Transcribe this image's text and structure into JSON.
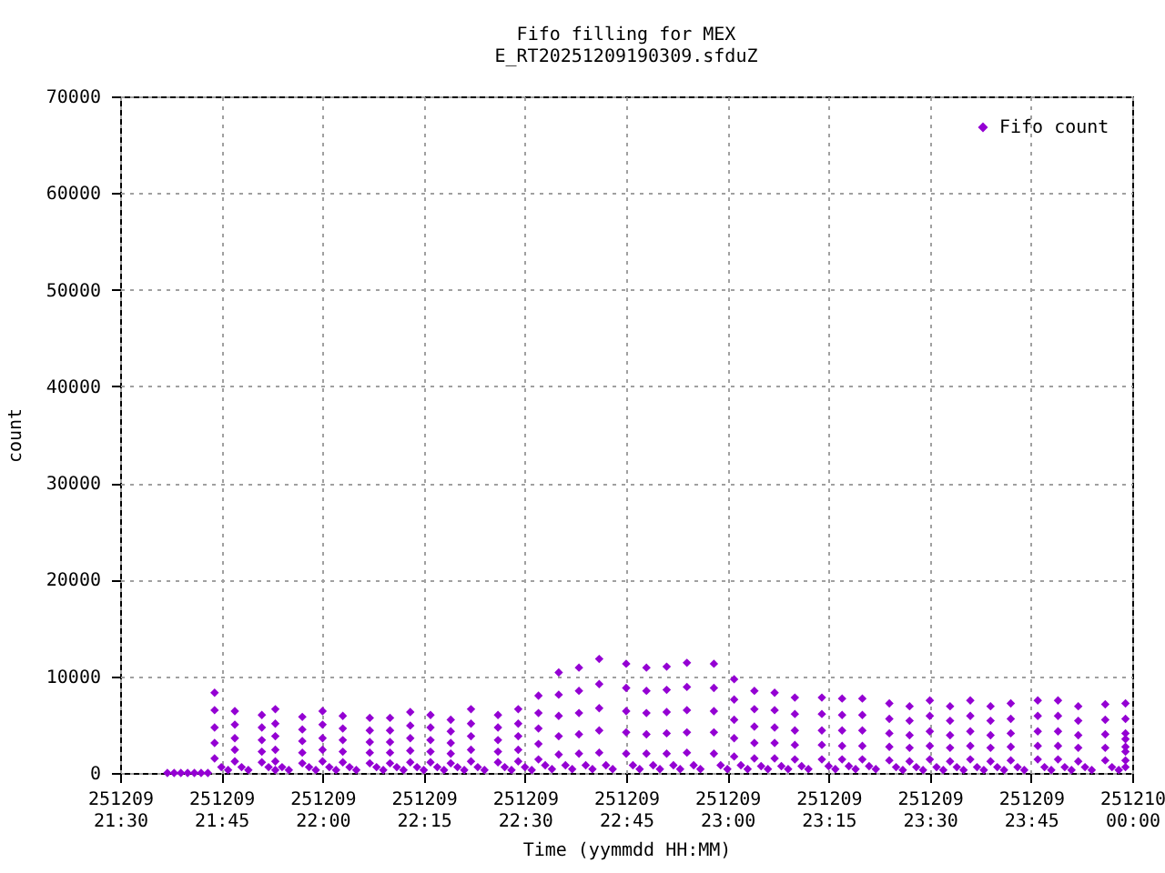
{
  "chart_data": {
    "type": "scatter",
    "title": "Fifo filling for MEX",
    "subtitle": "E_RT20251209190309.sfduZ",
    "xlabel": "Time (yymmdd HH:MM)",
    "ylabel": "count",
    "xlim": [
      "2025-12-09T21:30",
      "2025-12-10T00:00"
    ],
    "xticks": [
      {
        "value": "2025-12-09T21:30",
        "label": "251209\n21:30"
      },
      {
        "value": "2025-12-09T21:45",
        "label": "251209\n21:45"
      },
      {
        "value": "2025-12-09T22:00",
        "label": "251209\n22:00"
      },
      {
        "value": "2025-12-09T22:15",
        "label": "251209\n22:15"
      },
      {
        "value": "2025-12-09T22:30",
        "label": "251209\n22:30"
      },
      {
        "value": "2025-12-09T22:45",
        "label": "251209\n22:45"
      },
      {
        "value": "2025-12-09T23:00",
        "label": "251209\n23:00"
      },
      {
        "value": "2025-12-09T23:15",
        "label": "251209\n23:15"
      },
      {
        "value": "2025-12-09T23:30",
        "label": "251209\n23:30"
      },
      {
        "value": "2025-12-09T23:45",
        "label": "251209\n23:45"
      },
      {
        "value": "2025-12-10T00:00",
        "label": "251210\n00:00"
      }
    ],
    "ylim": [
      0,
      70000
    ],
    "yticks": [
      0,
      10000,
      20000,
      30000,
      40000,
      50000,
      60000,
      70000
    ],
    "grid": true,
    "legend": "top right",
    "marker": "diamond",
    "series": [
      {
        "name": "Fifo count",
        "color": "#9400d3",
        "x": [
          "2025-12-09T21:37",
          "2025-12-09T21:38",
          "2025-12-09T21:39",
          "2025-12-09T21:40",
          "2025-12-09T21:41",
          "2025-12-09T21:42",
          "2025-12-09T21:43",
          "2025-12-09T21:44",
          "2025-12-09T21:44",
          "2025-12-09T21:44",
          "2025-12-09T21:44",
          "2025-12-09T21:44",
          "2025-12-09T21:45",
          "2025-12-09T21:46",
          "2025-12-09T21:47",
          "2025-12-09T21:47",
          "2025-12-09T21:47",
          "2025-12-09T21:47",
          "2025-12-09T21:47",
          "2025-12-09T21:48",
          "2025-12-09T21:49",
          "2025-12-09T21:51",
          "2025-12-09T21:51",
          "2025-12-09T21:51",
          "2025-12-09T21:51",
          "2025-12-09T21:51",
          "2025-12-09T21:52",
          "2025-12-09T21:53",
          "2025-12-09T21:53",
          "2025-12-09T21:53",
          "2025-12-09T21:53",
          "2025-12-09T21:53",
          "2025-12-09T21:53",
          "2025-12-09T21:54",
          "2025-12-09T21:55",
          "2025-12-09T21:57",
          "2025-12-09T21:57",
          "2025-12-09T21:57",
          "2025-12-09T21:57",
          "2025-12-09T21:57",
          "2025-12-09T21:58",
          "2025-12-09T21:59",
          "2025-12-09T22:00",
          "2025-12-09T22:00",
          "2025-12-09T22:00",
          "2025-12-09T22:00",
          "2025-12-09T22:00",
          "2025-12-09T22:01",
          "2025-12-09T22:02",
          "2025-12-09T22:03",
          "2025-12-09T22:03",
          "2025-12-09T22:03",
          "2025-12-09T22:03",
          "2025-12-09T22:03",
          "2025-12-09T22:04",
          "2025-12-09T22:05",
          "2025-12-09T22:07",
          "2025-12-09T22:07",
          "2025-12-09T22:07",
          "2025-12-09T22:07",
          "2025-12-09T22:07",
          "2025-12-09T22:08",
          "2025-12-09T22:09",
          "2025-12-09T22:10",
          "2025-12-09T22:10",
          "2025-12-09T22:10",
          "2025-12-09T22:10",
          "2025-12-09T22:10",
          "2025-12-09T22:11",
          "2025-12-09T22:12",
          "2025-12-09T22:13",
          "2025-12-09T22:13",
          "2025-12-09T22:13",
          "2025-12-09T22:13",
          "2025-12-09T22:13",
          "2025-12-09T22:14",
          "2025-12-09T22:15",
          "2025-12-09T22:16",
          "2025-12-09T22:16",
          "2025-12-09T22:16",
          "2025-12-09T22:16",
          "2025-12-09T22:16",
          "2025-12-09T22:17",
          "2025-12-09T22:18",
          "2025-12-09T22:19",
          "2025-12-09T22:19",
          "2025-12-09T22:19",
          "2025-12-09T22:19",
          "2025-12-09T22:19",
          "2025-12-09T22:20",
          "2025-12-09T22:21",
          "2025-12-09T22:22",
          "2025-12-09T22:22",
          "2025-12-09T22:22",
          "2025-12-09T22:22",
          "2025-12-09T22:22",
          "2025-12-09T22:23",
          "2025-12-09T22:24",
          "2025-12-09T22:26",
          "2025-12-09T22:26",
          "2025-12-09T22:26",
          "2025-12-09T22:26",
          "2025-12-09T22:26",
          "2025-12-09T22:27",
          "2025-12-09T22:28",
          "2025-12-09T22:29",
          "2025-12-09T22:29",
          "2025-12-09T22:29",
          "2025-12-09T22:29",
          "2025-12-09T22:29",
          "2025-12-09T22:30",
          "2025-12-09T22:31",
          "2025-12-09T22:32",
          "2025-12-09T22:32",
          "2025-12-09T22:32",
          "2025-12-09T22:32",
          "2025-12-09T22:32",
          "2025-12-09T22:33",
          "2025-12-09T22:34",
          "2025-12-09T22:35",
          "2025-12-09T22:35",
          "2025-12-09T22:35",
          "2025-12-09T22:35",
          "2025-12-09T22:35",
          "2025-12-09T22:36",
          "2025-12-09T22:37",
          "2025-12-09T22:38",
          "2025-12-09T22:38",
          "2025-12-09T22:38",
          "2025-12-09T22:38",
          "2025-12-09T22:38",
          "2025-12-09T22:39",
          "2025-12-09T22:40",
          "2025-12-09T22:41",
          "2025-12-09T22:41",
          "2025-12-09T22:41",
          "2025-12-09T22:41",
          "2025-12-09T22:41",
          "2025-12-09T22:42",
          "2025-12-09T22:43",
          "2025-12-09T22:45",
          "2025-12-09T22:45",
          "2025-12-09T22:45",
          "2025-12-09T22:45",
          "2025-12-09T22:45",
          "2025-12-09T22:46",
          "2025-12-09T22:47",
          "2025-12-09T22:48",
          "2025-12-09T22:48",
          "2025-12-09T22:48",
          "2025-12-09T22:48",
          "2025-12-09T22:48",
          "2025-12-09T22:49",
          "2025-12-09T22:50",
          "2025-12-09T22:51",
          "2025-12-09T22:51",
          "2025-12-09T22:51",
          "2025-12-09T22:51",
          "2025-12-09T22:51",
          "2025-12-09T22:52",
          "2025-12-09T22:53",
          "2025-12-09T22:54",
          "2025-12-09T22:54",
          "2025-12-09T22:54",
          "2025-12-09T22:54",
          "2025-12-09T22:54",
          "2025-12-09T22:55",
          "2025-12-09T22:56",
          "2025-12-09T22:58",
          "2025-12-09T22:58",
          "2025-12-09T22:58",
          "2025-12-09T22:58",
          "2025-12-09T22:58",
          "2025-12-09T22:59",
          "2025-12-09T23:00",
          "2025-12-09T23:01",
          "2025-12-09T23:01",
          "2025-12-09T23:01",
          "2025-12-09T23:01",
          "2025-12-09T23:01",
          "2025-12-09T23:02",
          "2025-12-09T23:03",
          "2025-12-09T23:04",
          "2025-12-09T23:04",
          "2025-12-09T23:04",
          "2025-12-09T23:04",
          "2025-12-09T23:04",
          "2025-12-09T23:05",
          "2025-12-09T23:06",
          "2025-12-09T23:07",
          "2025-12-09T23:07",
          "2025-12-09T23:07",
          "2025-12-09T23:07",
          "2025-12-09T23:07",
          "2025-12-09T23:08",
          "2025-12-09T23:09",
          "2025-12-09T23:10",
          "2025-12-09T23:10",
          "2025-12-09T23:10",
          "2025-12-09T23:10",
          "2025-12-09T23:10",
          "2025-12-09T23:11",
          "2025-12-09T23:12",
          "2025-12-09T23:14",
          "2025-12-09T23:14",
          "2025-12-09T23:14",
          "2025-12-09T23:14",
          "2025-12-09T23:14",
          "2025-12-09T23:15",
          "2025-12-09T23:16",
          "2025-12-09T23:17",
          "2025-12-09T23:17",
          "2025-12-09T23:17",
          "2025-12-09T23:17",
          "2025-12-09T23:17",
          "2025-12-09T23:18",
          "2025-12-09T23:19",
          "2025-12-09T23:20",
          "2025-12-09T23:20",
          "2025-12-09T23:20",
          "2025-12-09T23:20",
          "2025-12-09T23:20",
          "2025-12-09T23:21",
          "2025-12-09T23:22",
          "2025-12-09T23:24",
          "2025-12-09T23:24",
          "2025-12-09T23:24",
          "2025-12-09T23:24",
          "2025-12-09T23:24",
          "2025-12-09T23:25",
          "2025-12-09T23:26",
          "2025-12-09T23:27",
          "2025-12-09T23:27",
          "2025-12-09T23:27",
          "2025-12-09T23:27",
          "2025-12-09T23:27",
          "2025-12-09T23:28",
          "2025-12-09T23:29",
          "2025-12-09T23:30",
          "2025-12-09T23:30",
          "2025-12-09T23:30",
          "2025-12-09T23:30",
          "2025-12-09T23:30",
          "2025-12-09T23:31",
          "2025-12-09T23:32",
          "2025-12-09T23:33",
          "2025-12-09T23:33",
          "2025-12-09T23:33",
          "2025-12-09T23:33",
          "2025-12-09T23:33",
          "2025-12-09T23:34",
          "2025-12-09T23:35",
          "2025-12-09T23:36",
          "2025-12-09T23:36",
          "2025-12-09T23:36",
          "2025-12-09T23:36",
          "2025-12-09T23:36",
          "2025-12-09T23:37",
          "2025-12-09T23:38",
          "2025-12-09T23:39",
          "2025-12-09T23:39",
          "2025-12-09T23:39",
          "2025-12-09T23:39",
          "2025-12-09T23:39",
          "2025-12-09T23:40",
          "2025-12-09T23:41",
          "2025-12-09T23:42",
          "2025-12-09T23:42",
          "2025-12-09T23:42",
          "2025-12-09T23:42",
          "2025-12-09T23:42",
          "2025-12-09T23:43",
          "2025-12-09T23:44",
          "2025-12-09T23:46",
          "2025-12-09T23:46",
          "2025-12-09T23:46",
          "2025-12-09T23:46",
          "2025-12-09T23:46",
          "2025-12-09T23:47",
          "2025-12-09T23:48",
          "2025-12-09T23:49",
          "2025-12-09T23:49",
          "2025-12-09T23:49",
          "2025-12-09T23:49",
          "2025-12-09T23:49",
          "2025-12-09T23:50",
          "2025-12-09T23:51",
          "2025-12-09T23:52",
          "2025-12-09T23:52",
          "2025-12-09T23:52",
          "2025-12-09T23:52",
          "2025-12-09T23:52",
          "2025-12-09T23:53",
          "2025-12-09T23:54",
          "2025-12-09T23:56",
          "2025-12-09T23:56",
          "2025-12-09T23:56",
          "2025-12-09T23:56",
          "2025-12-09T23:56",
          "2025-12-09T23:57",
          "2025-12-09T23:58",
          "2025-12-09T23:59",
          "2025-12-09T23:59",
          "2025-12-09T23:59",
          "2025-12-09T23:59",
          "2025-12-09T23:59",
          "2025-12-09T23:59",
          "2025-12-09T23:59",
          "2025-12-09T23:59"
        ],
        "values": [
          0,
          0,
          0,
          0,
          0,
          0,
          0,
          8300,
          6500,
          4700,
          3100,
          1500,
          600,
          300,
          6400,
          5000,
          3600,
          2400,
          1200,
          600,
          300,
          6000,
          4700,
          3400,
          2200,
          1100,
          600,
          300,
          6600,
          5100,
          3800,
          2400,
          1200,
          600,
          300,
          5800,
          4500,
          3300,
          2100,
          1000,
          600,
          300,
          6400,
          5000,
          3600,
          2400,
          1200,
          600,
          300,
          5900,
          4600,
          3400,
          2200,
          1100,
          600,
          300,
          5700,
          4400,
          3200,
          2100,
          1000,
          600,
          300,
          5700,
          4400,
          3200,
          2100,
          1000,
          600,
          300,
          6300,
          4900,
          3600,
          2300,
          1100,
          600,
          300,
          6000,
          4700,
          3400,
          2200,
          1100,
          600,
          300,
          5500,
          4300,
          3100,
          2000,
          1000,
          600,
          300,
          6600,
          5100,
          3800,
          2400,
          1200,
          600,
          300,
          6000,
          4700,
          3400,
          2200,
          1100,
          600,
          300,
          6600,
          5100,
          3800,
          2400,
          1200,
          600,
          300,
          8000,
          6200,
          4600,
          3000,
          1400,
          800,
          400,
          10400,
          8100,
          5900,
          3800,
          1900,
          800,
          400,
          10900,
          8500,
          6200,
          4000,
          2000,
          800,
          400,
          11800,
          9200,
          6700,
          4400,
          2100,
          800,
          400,
          11300,
          8800,
          6400,
          4200,
          2000,
          800,
          400,
          10900,
          8500,
          6200,
          4000,
          2000,
          800,
          400,
          11000,
          8600,
          6300,
          4100,
          2000,
          800,
          400,
          11400,
          8900,
          6500,
          4200,
          2100,
          800,
          400,
          11300,
          8800,
          6400,
          4200,
          2000,
          800,
          400,
          9700,
          7600,
          5500,
          3600,
          1700,
          800,
          400,
          8500,
          6600,
          4800,
          3100,
          1500,
          700,
          400,
          8300,
          6500,
          4700,
          3100,
          1500,
          700,
          400,
          7800,
          6100,
          4400,
          2900,
          1400,
          700,
          400,
          7800,
          6100,
          4400,
          2900,
          1400,
          700,
          400,
          7700,
          6000,
          4400,
          2800,
          1400,
          700,
          400,
          7700,
          6000,
          4400,
          2800,
          1400,
          700,
          400,
          7200,
          5600,
          4100,
          2700,
          1300,
          600,
          300,
          6900,
          5400,
          3900,
          2600,
          1200,
          600,
          300,
          7500,
          5900,
          4300,
          2800,
          1400,
          600,
          300,
          6900,
          5400,
          3900,
          2600,
          1200,
          600,
          300,
          7500,
          5900,
          4300,
          2800,
          1400,
          600,
          300,
          6900,
          5400,
          3900,
          2600,
          1200,
          600,
          300,
          7200,
          5600,
          4100,
          2700,
          1300,
          600,
          300,
          7500,
          5900,
          4300,
          2800,
          1400,
          600,
          300,
          7500,
          5900,
          4300,
          2800,
          1400,
          600,
          300,
          6900,
          5400,
          3900,
          2600,
          1200,
          600,
          300,
          7100,
          5500,
          4000,
          2600,
          1300,
          600,
          300,
          7200,
          5600,
          4100,
          2700,
          1300,
          3500,
          2200,
          600
        ]
      }
    ]
  }
}
